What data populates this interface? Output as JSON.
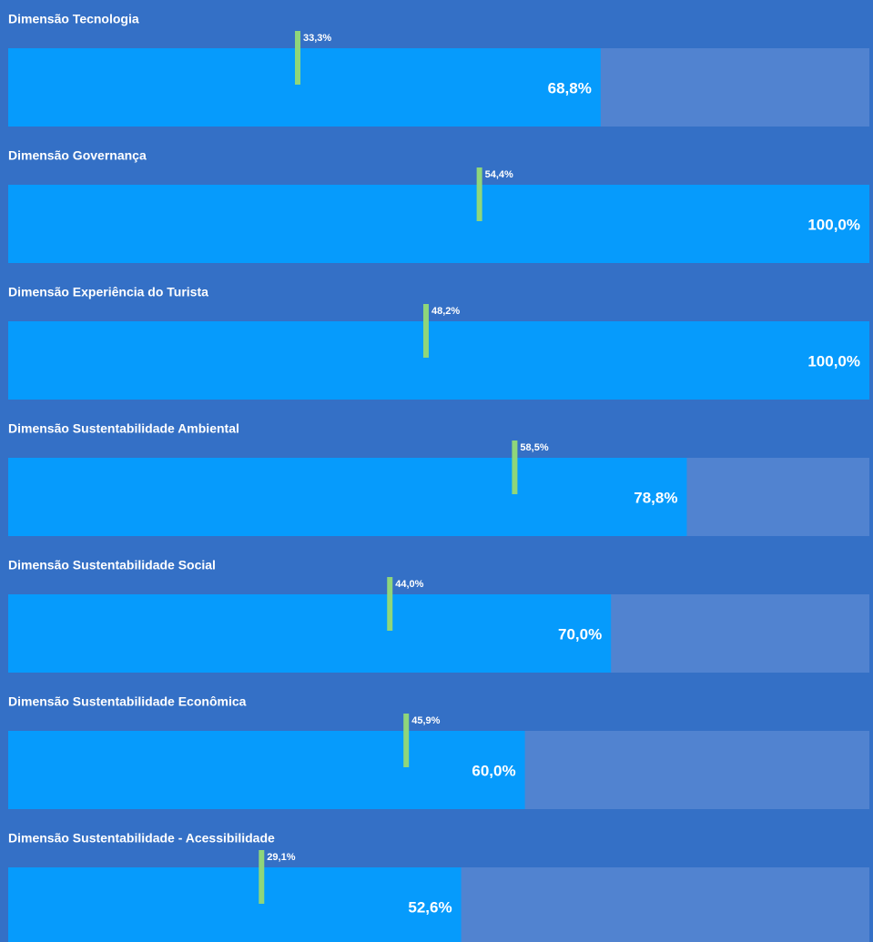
{
  "chart_data": [
    {
      "type": "bullet",
      "title": "Dimensão Tecnologia",
      "values": [
        68.8
      ],
      "value_labels": [
        "68,8%"
      ],
      "target": 33.3,
      "target_label": "33,3%",
      "xlim": [
        0,
        100
      ],
      "color": "#069bfc",
      "track_color": "#5183d0",
      "target_color": "#8fd67a"
    },
    {
      "type": "bullet",
      "title": "Dimensão Governança",
      "values": [
        100.0
      ],
      "value_labels": [
        "100,0%"
      ],
      "target": 54.4,
      "target_label": "54,4%",
      "xlim": [
        0,
        100
      ],
      "color": "#069bfc",
      "track_color": "#5183d0",
      "target_color": "#8fd67a"
    },
    {
      "type": "bullet",
      "title": "Dimensão Experiência do Turista",
      "values": [
        100.0
      ],
      "value_labels": [
        "100,0%"
      ],
      "target": 48.2,
      "target_label": "48,2%",
      "xlim": [
        0,
        100
      ],
      "color": "#069bfc",
      "track_color": "#5183d0",
      "target_color": "#8fd67a"
    },
    {
      "type": "bullet",
      "title": "Dimensão Sustentabilidade Ambiental",
      "values": [
        78.8
      ],
      "value_labels": [
        "78,8%"
      ],
      "target": 58.5,
      "target_label": "58,5%",
      "xlim": [
        0,
        100
      ],
      "color": "#069bfc",
      "track_color": "#5183d0",
      "target_color": "#8fd67a"
    },
    {
      "type": "bullet",
      "title": "Dimensão Sustentabilidade Social",
      "values": [
        70.0
      ],
      "value_labels": [
        "70,0%"
      ],
      "target": 44.0,
      "target_label": "44,0%",
      "xlim": [
        0,
        100
      ],
      "color": "#069bfc",
      "track_color": "#5183d0",
      "target_color": "#8fd67a"
    },
    {
      "type": "bullet",
      "title": "Dimensão Sustentabilidade Econômica",
      "values": [
        60.0
      ],
      "value_labels": [
        "60,0%"
      ],
      "target": 45.9,
      "target_label": "45,9%",
      "xlim": [
        0,
        100
      ],
      "color": "#069bfc",
      "track_color": "#5183d0",
      "target_color": "#8fd67a"
    },
    {
      "type": "bullet",
      "title": "Dimensão Sustentabilidade - Acessibilidade",
      "values": [
        52.6
      ],
      "value_labels": [
        "52,6%"
      ],
      "target": 29.1,
      "target_label": "29,1%",
      "xlim": [
        0,
        100
      ],
      "color": "#069bfc",
      "track_color": "#5183d0",
      "target_color": "#8fd67a"
    }
  ]
}
